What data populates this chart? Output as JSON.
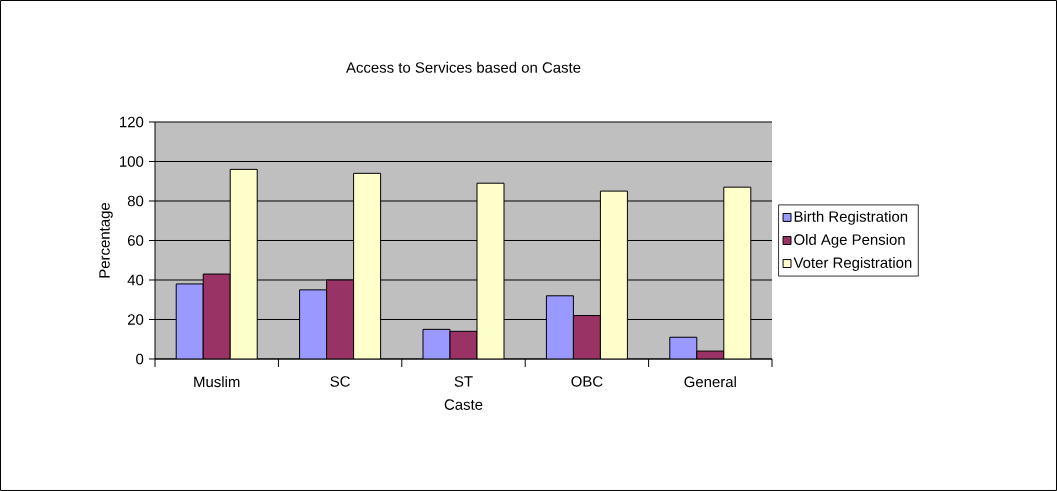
{
  "chart_data": {
    "type": "bar",
    "title": "Access to Services based on Caste",
    "xlabel": "Caste",
    "ylabel": "Percentage",
    "categories": [
      "Muslim",
      "SC",
      "ST",
      "OBC",
      "General"
    ],
    "series": [
      {
        "name": "Birth Registration",
        "color": "#9999ff",
        "values": [
          38,
          35,
          15,
          32,
          11
        ]
      },
      {
        "name": "Old Age Pension",
        "color": "#993366",
        "values": [
          43,
          40,
          14,
          22,
          4
        ]
      },
      {
        "name": "Voter Registration",
        "color": "#ffffcc",
        "values": [
          96,
          94,
          89,
          85,
          87
        ]
      }
    ],
    "ylim": [
      0,
      120
    ],
    "yticks": [
      0,
      20,
      40,
      60,
      80,
      100,
      120
    ],
    "grid": "y",
    "legend": "right"
  }
}
